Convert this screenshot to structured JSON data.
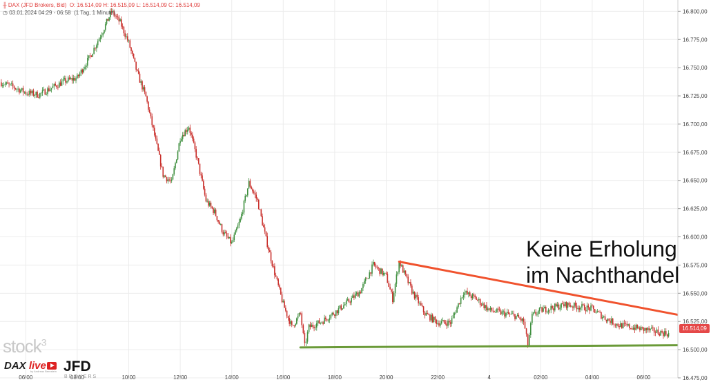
{
  "header": {
    "instrument": "DAX (JFD Brokers, Bid)",
    "ohlc": "O: 16.514,09   H: 16.515,09   L: 16.514,09   C: 16.514,09",
    "range": "03.01.2024 04:29 - 06:58",
    "interval": "(1 Tag, 1 Minute)"
  },
  "price_badge": "16.514,09",
  "annotation": {
    "line1": "Keine Erholung",
    "line2": "im Nachthandel"
  },
  "logos": {
    "stock3": "stock",
    "stock3_sup": "3",
    "dax_live": "DAX",
    "dax_live_b": "live",
    "dax_live_sub": "by Andreas Bernstein",
    "jfd": "JFD",
    "jfd_sub": "BROKERS"
  },
  "colors": {
    "up": "#3f8f3f",
    "down": "#c9302c",
    "resistance": "#f0522d",
    "support": "#6a9a38",
    "badge": "#e54848"
  },
  "chart_data": {
    "type": "candlestick",
    "instrument": "DAX (JFD Brokers, Bid)",
    "interval": "1 Minute",
    "y_ticks": [
      "16.800,00",
      "16.775,00",
      "16.750,00",
      "16.725,00",
      "16.700,00",
      "16.675,00",
      "16.650,00",
      "16.625,00",
      "16.600,00",
      "16.575,00",
      "16.550,00",
      "16.525,00",
      "16.500,00",
      "16.475,00"
    ],
    "x_ticks": [
      "06:00",
      "08:00",
      "10:00",
      "12:00",
      "14:00",
      "16:00",
      "18:00",
      "20:00",
      "22:00",
      "4",
      "02:00",
      "04:00",
      "06:00"
    ],
    "ylim": [
      16475,
      16810
    ],
    "grid": true,
    "last_price": 16514.09,
    "price_path": [
      [
        "05:00",
        16737
      ],
      [
        "05:30",
        16733
      ],
      [
        "06:00",
        16728
      ],
      [
        "06:30",
        16726
      ],
      [
        "07:00",
        16732
      ],
      [
        "07:30",
        16738
      ],
      [
        "08:00",
        16741
      ],
      [
        "08:30",
        16760
      ],
      [
        "09:00",
        16783
      ],
      [
        "09:20",
        16800
      ],
      [
        "09:40",
        16790
      ],
      [
        "10:00",
        16772
      ],
      [
        "10:20",
        16745
      ],
      [
        "10:40",
        16724
      ],
      [
        "11:00",
        16690
      ],
      [
        "11:20",
        16655
      ],
      [
        "11:40",
        16648
      ],
      [
        "12:00",
        16688
      ],
      [
        "12:20",
        16698
      ],
      [
        "12:40",
        16668
      ],
      [
        "13:00",
        16632
      ],
      [
        "13:20",
        16622
      ],
      [
        "13:40",
        16604
      ],
      [
        "14:00",
        16594
      ],
      [
        "14:20",
        16615
      ],
      [
        "14:40",
        16648
      ],
      [
        "15:00",
        16632
      ],
      [
        "15:20",
        16598
      ],
      [
        "15:40",
        16568
      ],
      [
        "16:00",
        16540
      ],
      [
        "16:20",
        16520
      ],
      [
        "16:40",
        16532
      ],
      [
        "16:50",
        16503
      ],
      [
        "17:00",
        16520
      ],
      [
        "17:30",
        16525
      ],
      [
        "18:00",
        16533
      ],
      [
        "18:30",
        16542
      ],
      [
        "19:00",
        16552
      ],
      [
        "19:30",
        16575
      ],
      [
        "20:00",
        16565
      ],
      [
        "20:15",
        16545
      ],
      [
        "20:30",
        16578
      ],
      [
        "21:00",
        16552
      ],
      [
        "21:30",
        16532
      ],
      [
        "22:00",
        16524
      ],
      [
        "22:30",
        16524
      ],
      [
        "23:00",
        16551
      ],
      [
        "23:30",
        16545
      ],
      [
        "00:00",
        16535
      ],
      [
        "01:00",
        16530
      ],
      [
        "01:20",
        16525
      ],
      [
        "01:30",
        16504
      ],
      [
        "01:40",
        16530
      ],
      [
        "02:00",
        16535
      ],
      [
        "03:00",
        16540
      ],
      [
        "04:00",
        16536
      ],
      [
        "04:30",
        16528
      ],
      [
        "05:00",
        16522
      ],
      [
        "06:00",
        16518
      ],
      [
        "06:58",
        16514
      ]
    ],
    "trendlines": [
      {
        "name": "resistance",
        "from": [
          "20:30",
          16578
        ],
        "to": [
          "08:00",
          16528
        ]
      },
      {
        "name": "support",
        "from": [
          "16:40",
          16502
        ],
        "to": [
          "08:00",
          16504
        ]
      }
    ]
  }
}
